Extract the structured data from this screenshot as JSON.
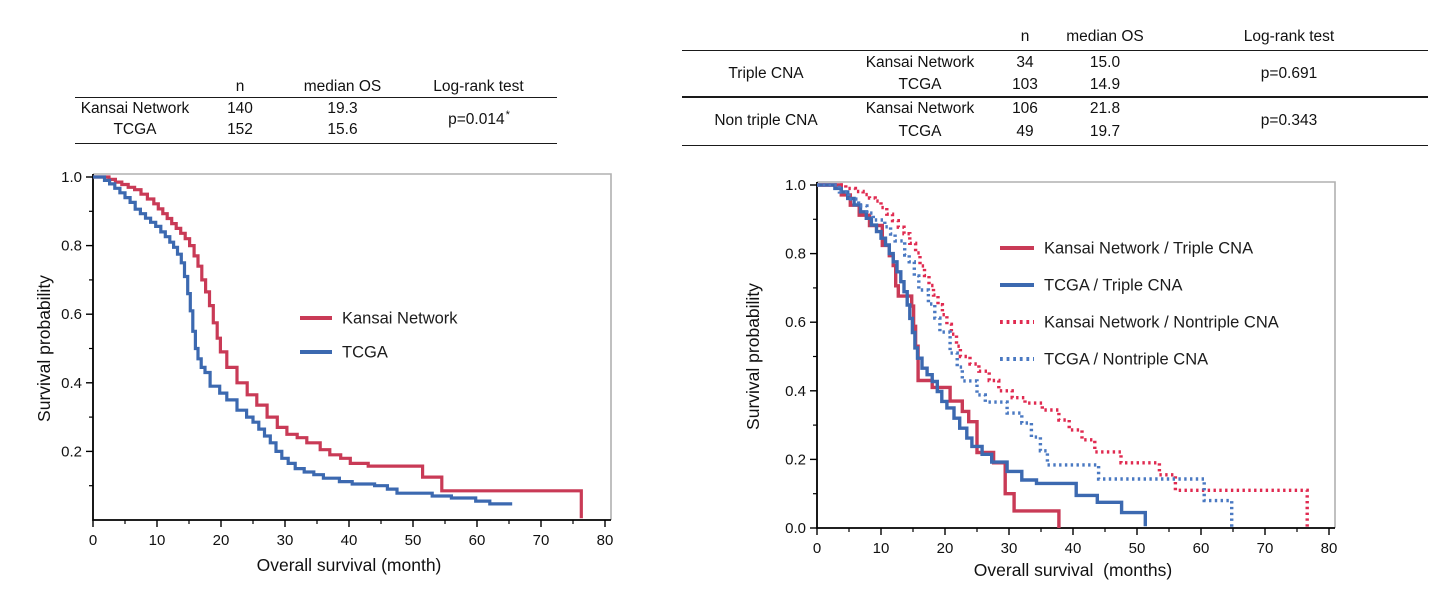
{
  "colors": {
    "red_solid": "#c93a56",
    "blue_solid": "#3c69b0",
    "red_dotted": "#e02a50",
    "blue_dotted": "#4a79c2",
    "axis": "#000000",
    "frame_gray": "#b0b0b0",
    "text": "#111111"
  },
  "tables": [
    {
      "columns": [
        "",
        "n",
        "median OS",
        "Log-rank test"
      ],
      "rows": [
        [
          "Kansai Network",
          "140",
          "19.3"
        ],
        [
          "TCGA",
          "152",
          "15.6"
        ]
      ],
      "p_value": "p=0.014",
      "p_asterisk": "*"
    },
    {
      "columns": [
        "",
        "",
        "n",
        "median OS",
        "Log-rank test"
      ],
      "sections": [
        {
          "group": "Triple CNA",
          "rows": [
            [
              "Kansai Network",
              "34",
              "15.0"
            ],
            [
              "TCGA",
              "103",
              "14.9"
            ]
          ],
          "p_value": "p=0.691"
        },
        {
          "group": "Non triple CNA",
          "rows": [
            [
              "Kansai Network",
              "106",
              "21.8"
            ],
            [
              "TCGA",
              "49",
              "19.7"
            ]
          ],
          "p_value": "p=0.343"
        }
      ]
    }
  ],
  "chart_data": [
    {
      "id": "km-left",
      "type": "line",
      "subtype": "kaplan-meier-step",
      "xlabel": "Overall survival (month)",
      "ylabel": "Survival probability",
      "xlim": [
        0,
        80
      ],
      "ylim": [
        0,
        1
      ],
      "xticks_major": [
        0,
        10,
        20,
        30,
        40,
        50,
        60,
        70,
        80
      ],
      "xticks_minor": [
        5,
        15,
        25,
        35,
        45,
        55,
        65,
        75
      ],
      "yticks_labeled": [
        1.0,
        0.8,
        0.6,
        0.4,
        0.2
      ],
      "ytick_labels": [
        "1.0",
        "0.8",
        "0.6",
        "0.4",
        "0.2"
      ],
      "yticks_minor": [
        0.1,
        0.3,
        0.5,
        0.7,
        0.9
      ],
      "grid": false,
      "legend_position": "center-right-inside",
      "series": [
        {
          "name": "Kansai Network",
          "style": "solid",
          "color_key": "red_solid",
          "points": [
            [
              0,
              1.0
            ],
            [
              2.5,
              0.993
            ],
            [
              3.5,
              0.985
            ],
            [
              4.5,
              0.978
            ],
            [
              5.5,
              0.97
            ],
            [
              6.5,
              0.963
            ],
            [
              7.5,
              0.95
            ],
            [
              8.5,
              0.936
            ],
            [
              9.5,
              0.922
            ],
            [
              10.2,
              0.907
            ],
            [
              10.9,
              0.893
            ],
            [
              11.6,
              0.879
            ],
            [
              12.3,
              0.864
            ],
            [
              13,
              0.85
            ],
            [
              13.7,
              0.836
            ],
            [
              14.4,
              0.82
            ],
            [
              15.1,
              0.8
            ],
            [
              15.8,
              0.77
            ],
            [
              16.4,
              0.74
            ],
            [
              17,
              0.7
            ],
            [
              17.6,
              0.665
            ],
            [
              18.2,
              0.625
            ],
            [
              18.8,
              0.575
            ],
            [
              19.4,
              0.53
            ],
            [
              19.9,
              0.49
            ],
            [
              20.9,
              0.445
            ],
            [
              22.5,
              0.4
            ],
            [
              24.1,
              0.365
            ],
            [
              25.6,
              0.335
            ],
            [
              27.2,
              0.3
            ],
            [
              28.8,
              0.27
            ],
            [
              30.3,
              0.25
            ],
            [
              31.9,
              0.24
            ],
            [
              33.4,
              0.225
            ],
            [
              35.5,
              0.205
            ],
            [
              37,
              0.19
            ],
            [
              38.7,
              0.18
            ],
            [
              40.2,
              0.165
            ],
            [
              43,
              0.157
            ],
            [
              51.5,
              0.125
            ],
            [
              54.5,
              0.085
            ],
            [
              76.3,
              0.005
            ]
          ]
        },
        {
          "name": "TCGA",
          "style": "solid",
          "color_key": "blue_solid",
          "points": [
            [
              0,
              1.0
            ],
            [
              1.8,
              0.99
            ],
            [
              2.6,
              0.98
            ],
            [
              3.4,
              0.967
            ],
            [
              4.2,
              0.954
            ],
            [
              5,
              0.94
            ],
            [
              5.8,
              0.926
            ],
            [
              6.6,
              0.906
            ],
            [
              7.4,
              0.893
            ],
            [
              8.2,
              0.88
            ],
            [
              9,
              0.868
            ],
            [
              9.8,
              0.856
            ],
            [
              10.6,
              0.84
            ],
            [
              11.3,
              0.826
            ],
            [
              12,
              0.81
            ],
            [
              12.6,
              0.795
            ],
            [
              13.2,
              0.775
            ],
            [
              13.8,
              0.75
            ],
            [
              14.3,
              0.71
            ],
            [
              14.8,
              0.66
            ],
            [
              15.2,
              0.61
            ],
            [
              15.6,
              0.55
            ],
            [
              16,
              0.5
            ],
            [
              16.4,
              0.47
            ],
            [
              16.9,
              0.445
            ],
            [
              17.5,
              0.43
            ],
            [
              18.3,
              0.39
            ],
            [
              19.8,
              0.37
            ],
            [
              20.9,
              0.35
            ],
            [
              22.5,
              0.32
            ],
            [
              24,
              0.3
            ],
            [
              25,
              0.285
            ],
            [
              25.9,
              0.265
            ],
            [
              26.8,
              0.245
            ],
            [
              27.7,
              0.225
            ],
            [
              28.6,
              0.2
            ],
            [
              29.5,
              0.18
            ],
            [
              30.5,
              0.165
            ],
            [
              31.6,
              0.15
            ],
            [
              33,
              0.14
            ],
            [
              34.5,
              0.132
            ],
            [
              36,
              0.122
            ],
            [
              38.5,
              0.112
            ],
            [
              40.5,
              0.105
            ],
            [
              44,
              0.1
            ],
            [
              46,
              0.09
            ],
            [
              47.5,
              0.078
            ],
            [
              53,
              0.07
            ],
            [
              56,
              0.064
            ],
            [
              59.8,
              0.055
            ],
            [
              62,
              0.047
            ],
            [
              65.5,
              0.047
            ]
          ]
        }
      ]
    },
    {
      "id": "km-right",
      "type": "line",
      "subtype": "kaplan-meier-step",
      "xlabel": "Overall survival  (months)",
      "ylabel": "Survival probability",
      "xlim": [
        0,
        80
      ],
      "ylim": [
        0,
        1
      ],
      "xticks_major": [
        0,
        10,
        20,
        30,
        40,
        50,
        60,
        70,
        80
      ],
      "xticks_minor": [
        5,
        15,
        25,
        35,
        45,
        55,
        65,
        75
      ],
      "yticks_labeled": [
        1.0,
        0.8,
        0.6,
        0.4,
        0.2,
        0.0
      ],
      "ytick_labels": [
        "1.0",
        "0.8",
        "0.6",
        "0.4",
        "0.2",
        "0.0"
      ],
      "yticks_minor": [
        0.1,
        0.3,
        0.5,
        0.7,
        0.9
      ],
      "grid": false,
      "legend_position": "upper-right-inside",
      "series": [
        {
          "name": "Kansai Network / Triple CNA",
          "style": "solid",
          "color_key": "red_solid",
          "points": [
            [
              0,
              1.0
            ],
            [
              3.8,
              0.971
            ],
            [
              5.2,
              0.941
            ],
            [
              6.6,
              0.912
            ],
            [
              8.2,
              0.882
            ],
            [
              10.2,
              0.824
            ],
            [
              11.3,
              0.794
            ],
            [
              11.9,
              0.765
            ],
            [
              12.3,
              0.706
            ],
            [
              12.7,
              0.676
            ],
            [
              14.8,
              0.647
            ],
            [
              15.1,
              0.588
            ],
            [
              15.4,
              0.53
            ],
            [
              15.8,
              0.43
            ],
            [
              18,
              0.41
            ],
            [
              20.8,
              0.37
            ],
            [
              22.7,
              0.34
            ],
            [
              23.7,
              0.31
            ],
            [
              25,
              0.22
            ],
            [
              27.6,
              0.19
            ],
            [
              29.4,
              0.1
            ],
            [
              30.8,
              0.05
            ],
            [
              37.8,
              0.0
            ]
          ]
        },
        {
          "name": "TCGA / Triple CNA",
          "style": "solid",
          "color_key": "blue_solid",
          "points": [
            [
              0,
              1.0
            ],
            [
              2.8,
              0.99
            ],
            [
              3.8,
              0.98
            ],
            [
              4.8,
              0.961
            ],
            [
              5.8,
              0.942
            ],
            [
              6.8,
              0.922
            ],
            [
              7.7,
              0.903
            ],
            [
              8.5,
              0.883
            ],
            [
              9.3,
              0.864
            ],
            [
              10,
              0.845
            ],
            [
              10.7,
              0.825
            ],
            [
              11.3,
              0.8
            ],
            [
              11.9,
              0.776
            ],
            [
              12.5,
              0.747
            ],
            [
              13.1,
              0.718
            ],
            [
              13.6,
              0.689
            ],
            [
              14.1,
              0.65
            ],
            [
              14.5,
              0.611
            ],
            [
              14.9,
              0.57
            ],
            [
              15.3,
              0.525
            ],
            [
              15.7,
              0.495
            ],
            [
              16.4,
              0.466
            ],
            [
              17.2,
              0.447
            ],
            [
              18,
              0.427
            ],
            [
              18.8,
              0.398
            ],
            [
              19.5,
              0.369
            ],
            [
              20.3,
              0.35
            ],
            [
              21.4,
              0.32
            ],
            [
              22.3,
              0.291
            ],
            [
              23.4,
              0.262
            ],
            [
              24.2,
              0.238
            ],
            [
              25.8,
              0.215
            ],
            [
              27.3,
              0.192
            ],
            [
              29.7,
              0.165
            ],
            [
              32,
              0.14
            ],
            [
              34.3,
              0.13
            ],
            [
              40.5,
              0.095
            ],
            [
              43.8,
              0.075
            ],
            [
              47.6,
              0.045
            ],
            [
              51.3,
              0.005
            ]
          ]
        },
        {
          "name": "Kansai Network / Nontriple CNA",
          "style": "dotted",
          "color_key": "red_dotted",
          "points": [
            [
              0,
              1.0
            ],
            [
              4.5,
              0.99
            ],
            [
              6,
              0.981
            ],
            [
              7.2,
              0.972
            ],
            [
              8.2,
              0.962
            ],
            [
              9.1,
              0.953
            ],
            [
              10,
              0.934
            ],
            [
              10.9,
              0.915
            ],
            [
              11.8,
              0.896
            ],
            [
              12.7,
              0.877
            ],
            [
              13.6,
              0.858
            ],
            [
              14.5,
              0.83
            ],
            [
              15.4,
              0.802
            ],
            [
              16.1,
              0.764
            ],
            [
              16.8,
              0.736
            ],
            [
              17.5,
              0.707
            ],
            [
              18.2,
              0.679
            ],
            [
              18.9,
              0.651
            ],
            [
              19.6,
              0.622
            ],
            [
              20.3,
              0.594
            ],
            [
              21,
              0.565
            ],
            [
              21.8,
              0.53
            ],
            [
              22.4,
              0.5
            ],
            [
              23.9,
              0.478
            ],
            [
              25.3,
              0.457
            ],
            [
              26.9,
              0.43
            ],
            [
              28.4,
              0.4
            ],
            [
              30.5,
              0.38
            ],
            [
              32.5,
              0.364
            ],
            [
              35.2,
              0.344
            ],
            [
              37.8,
              0.315
            ],
            [
              39.4,
              0.286
            ],
            [
              41.4,
              0.257
            ],
            [
              43.4,
              0.222
            ],
            [
              47.5,
              0.19
            ],
            [
              53.5,
              0.155
            ],
            [
              56,
              0.11
            ],
            [
              76.6,
              0.0
            ]
          ]
        },
        {
          "name": "TCGA / Nontriple CNA",
          "style": "dotted",
          "color_key": "blue_dotted",
          "points": [
            [
              0,
              1.0
            ],
            [
              3.5,
              0.98
            ],
            [
              5,
              0.959
            ],
            [
              6.5,
              0.939
            ],
            [
              7.8,
              0.918
            ],
            [
              8.8,
              0.898
            ],
            [
              10.6,
              0.878
            ],
            [
              11.5,
              0.857
            ],
            [
              12.2,
              0.837
            ],
            [
              13.7,
              0.796
            ],
            [
              14.4,
              0.776
            ],
            [
              15.2,
              0.735
            ],
            [
              15.9,
              0.694
            ],
            [
              17.4,
              0.653
            ],
            [
              18.4,
              0.612
            ],
            [
              19.2,
              0.571
            ],
            [
              20.8,
              0.51
            ],
            [
              21.9,
              0.469
            ],
            [
              22.7,
              0.429
            ],
            [
              25,
              0.388
            ],
            [
              26.3,
              0.367
            ],
            [
              29.7,
              0.335
            ],
            [
              32,
              0.306
            ],
            [
              33.5,
              0.265
            ],
            [
              34.9,
              0.225
            ],
            [
              36,
              0.184
            ],
            [
              44,
              0.143
            ],
            [
              60.5,
              0.08
            ],
            [
              64.8,
              0.0
            ]
          ]
        }
      ]
    }
  ]
}
